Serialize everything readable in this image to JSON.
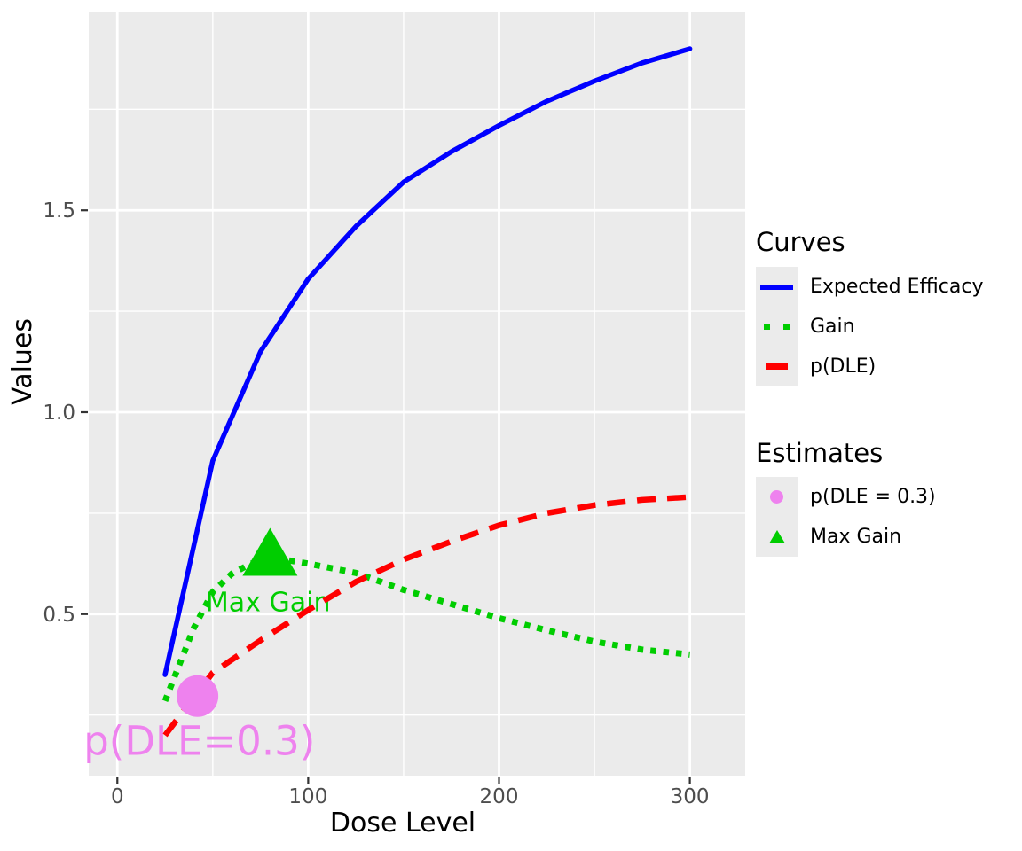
{
  "chart_data": {
    "type": "line",
    "title": "",
    "xlabel": "Dose Level",
    "ylabel": "Values",
    "xlim": [
      -15,
      329
    ],
    "ylim": [
      0.1,
      1.99
    ],
    "grid": true,
    "legend_position": "right",
    "xticks": [
      0,
      100,
      200,
      300
    ],
    "xtick_labels": [
      "0",
      "100",
      "200",
      "300"
    ],
    "x_minor": [
      50,
      150,
      250
    ],
    "yticks": [
      0.5,
      1.0,
      1.5
    ],
    "ytick_labels": [
      "0.5",
      "1.0",
      "1.5"
    ],
    "y_minor": [
      0.25,
      0.75,
      1.25,
      1.75
    ],
    "series": [
      {
        "name": "Expected Efficacy",
        "color": "#0000FF",
        "linetype": "solid",
        "x": [
          25,
          50,
          75,
          100,
          125,
          150,
          175,
          200,
          225,
          250,
          275,
          300
        ],
        "y": [
          0.35,
          0.88,
          1.15,
          1.33,
          1.46,
          1.57,
          1.645,
          1.71,
          1.77,
          1.82,
          1.865,
          1.9
        ]
      },
      {
        "name": "Gain",
        "color": "#00CD00",
        "linetype": "dotted",
        "x": [
          25,
          40,
          50,
          60,
          70,
          80,
          90,
          100,
          125,
          150,
          175,
          200,
          225,
          250,
          275,
          300
        ],
        "y": [
          0.285,
          0.465,
          0.555,
          0.6,
          0.625,
          0.635,
          0.633,
          0.625,
          0.602,
          0.56,
          0.525,
          0.49,
          0.46,
          0.432,
          0.412,
          0.4
        ]
      },
      {
        "name": "p(DLE)",
        "color": "#FF0000",
        "linetype": "dashed",
        "x": [
          25,
          50,
          75,
          100,
          125,
          150,
          175,
          200,
          225,
          250,
          275,
          300
        ],
        "y": [
          0.2,
          0.355,
          0.435,
          0.51,
          0.58,
          0.635,
          0.68,
          0.72,
          0.75,
          0.77,
          0.783,
          0.79
        ]
      }
    ],
    "points": [
      {
        "name": "p(DLE = 0.3)",
        "shape": "circle",
        "color": "#EE82EE",
        "x": 42,
        "y": 0.297
      },
      {
        "name": "Max Gain",
        "shape": "triangle",
        "color": "#00CD00",
        "x": 80,
        "y": 0.652
      }
    ],
    "annotations": [
      {
        "text": "p(DLE=0.3)",
        "color": "#EE82EE",
        "x": 43,
        "y": 0.187,
        "size": 45
      },
      {
        "text": "Max Gain",
        "color": "#00CD00",
        "x": 79,
        "y": 0.531,
        "size": 30
      }
    ],
    "legend": {
      "groups": [
        {
          "title": "Curves",
          "entries": [
            {
              "label": "Expected Efficacy",
              "glyph": "solid-blue-line"
            },
            {
              "label": "Gain",
              "glyph": "dotted-green-line"
            },
            {
              "label": "p(DLE)",
              "glyph": "dashed-red-line"
            }
          ]
        },
        {
          "title": "Estimates",
          "entries": [
            {
              "label": "p(DLE = 0.3)",
              "glyph": "violet-circle"
            },
            {
              "label": "Max Gain",
              "glyph": "green-triangle"
            }
          ]
        }
      ]
    },
    "colors": {
      "panel_bg": "#EBEBEB",
      "grid": "#FFFFFF",
      "tick_mark": "#333333",
      "tick_label": "#4D4D4D",
      "axis_title": "#000000",
      "efficacy_blue": "#0000FF",
      "gain_green": "#00CD00",
      "dle_red": "#FF0000",
      "estimate_violet": "#EE82EE"
    }
  }
}
